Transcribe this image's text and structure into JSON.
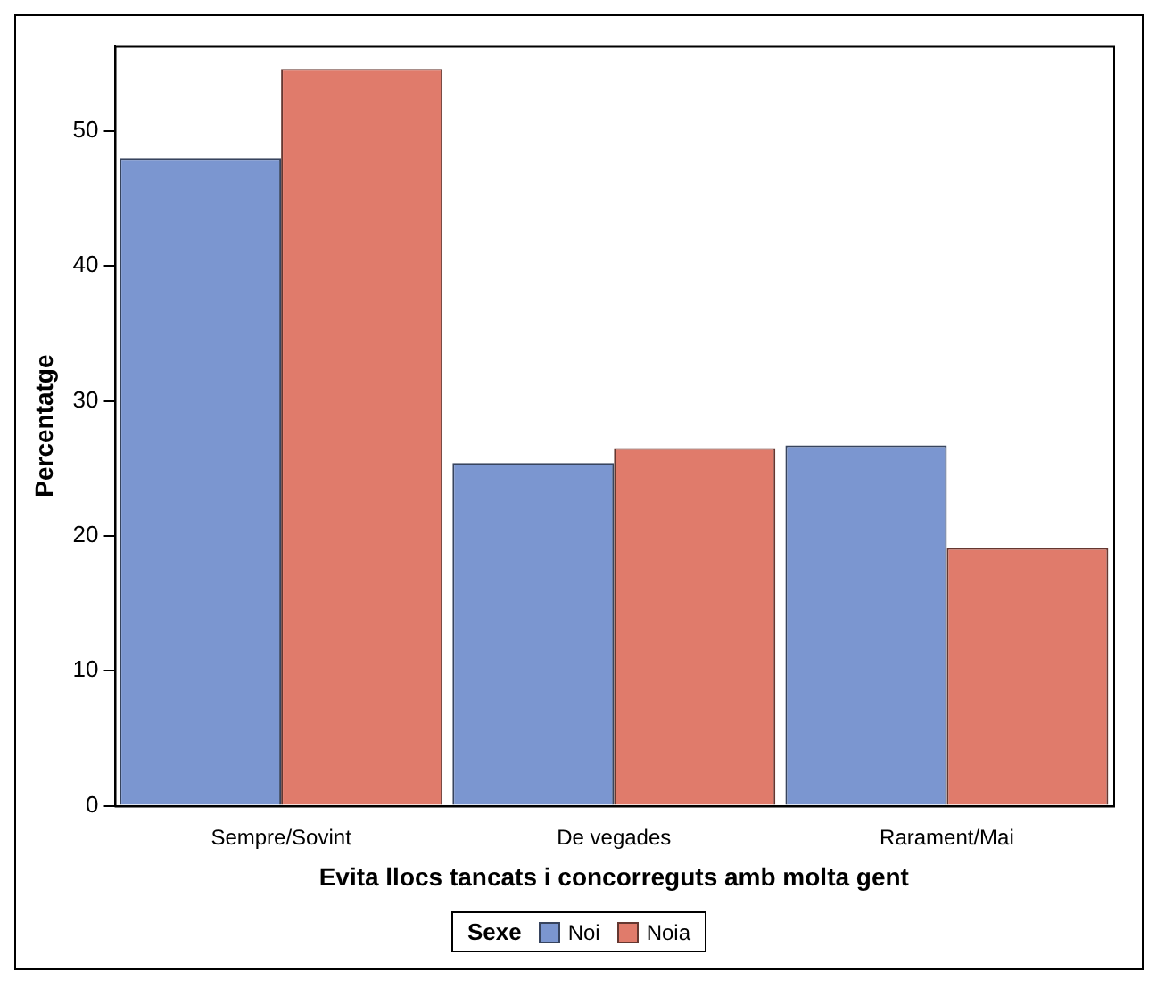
{
  "chart_data": {
    "type": "bar",
    "xlabel": "Evita llocs tancats i concorreguts amb molta gent",
    "ylabel": "Percentatge",
    "legend_title": "Sexe",
    "legend": "bottom",
    "grid": false,
    "categories": [
      "Sempre/Sovint",
      "De vegades",
      "Rarament/Mai"
    ],
    "series": [
      {
        "name": "Noi",
        "color": "#7b96d0",
        "values": [
          48.0,
          25.4,
          26.7
        ]
      },
      {
        "name": "Noia",
        "color": "#e07b6b",
        "values": [
          54.6,
          26.5,
          19.1
        ]
      }
    ],
    "ylim": [
      0,
      56.3
    ],
    "yticks": [
      0,
      10,
      20,
      30,
      40,
      50
    ]
  }
}
